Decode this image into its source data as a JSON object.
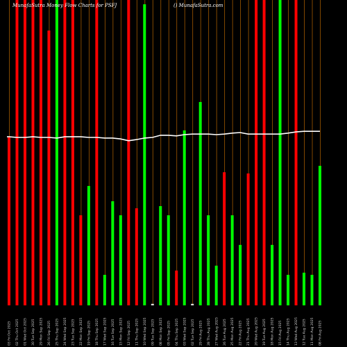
{
  "header": {
    "title": "MunafaSutra Money Flow Charts for PSFJ",
    "site": "() MunafaSutra.com"
  },
  "colors": {
    "background": "#000000",
    "up": "#00ff00",
    "down": "#ff0000",
    "neutral": "#dddddd",
    "grid": "#a35a00",
    "line": "#ffffff"
  },
  "chart_data": {
    "type": "bar",
    "grid": true,
    "legend": "none",
    "ylim": [
      0,
      100
    ],
    "categories": [
      "03 Fri Oct 2025",
      "02 Thu Oct 2025",
      "01 Wed Oct 2025",
      "30 Tue Sep 2025",
      "29 Mon Sep 2025",
      "26 Fri Sep 2025",
      "25 Thu Sep 2025",
      "24 Wed Sep 2025",
      "23 Tue Sep 2025",
      "22 Mon Sep 2025",
      "19 Fri Sep 2025",
      "18 Thu Sep 2025",
      "17 Wed Sep 2025",
      "16 Tue Sep 2025",
      "15 Mon Sep 2025",
      "12 Fri Sep 2025",
      "11 Thu Sep 2025",
      "10 Wed Sep 2025",
      "09 Tue Sep 2025",
      "08 Mon Sep 2025",
      "05 Fri Sep 2025",
      "04 Thu Sep 2025",
      "03 Wed Sep 2025",
      "02 Tue Sep 2025",
      "29 Fri Aug 2025",
      "28 Thu Aug 2025",
      "27 Wed Aug 2025",
      "26 Tue Aug 2025",
      "25 Mon Aug 2025",
      "22 Fri Aug 2025",
      "21 Thu Aug 2025",
      "20 Wed Aug 2025",
      "19 Tue Aug 2025",
      "18 Mon Aug 2025",
      "15 Fri Aug 2025",
      "14 Thu Aug 2025",
      "13 Wed Aug 2025",
      "12 Tue Aug 2025",
      "11 Mon Aug 2025",
      "08 Fri Aug 2025"
    ],
    "series": [
      {
        "type": "bar",
        "values": [
          55.2,
          100,
          100,
          100,
          100,
          90,
          100,
          100,
          100,
          29.5,
          39.1,
          100,
          10,
          34.1,
          29.5,
          100,
          31.8,
          98.6,
          0.5,
          32.5,
          29.5,
          11.4,
          57.3,
          0.5,
          66.6,
          29.5,
          13,
          43.6,
          29.5,
          19.8,
          43.2,
          100,
          100,
          19.8,
          100,
          10,
          100,
          10.7,
          10,
          45.7
        ],
        "direction": [
          "down",
          "down",
          "down",
          "down",
          "down",
          "down",
          "up",
          "down",
          "down",
          "down",
          "up",
          "down",
          "up",
          "up",
          "up",
          "down",
          "down",
          "up",
          "neutral",
          "up",
          "up",
          "down",
          "up",
          "neutral",
          "up",
          "up",
          "up",
          "down",
          "up",
          "up",
          "down",
          "down",
          "down",
          "up",
          "up",
          "up",
          "down",
          "up",
          "up",
          "up"
        ]
      },
      {
        "type": "line",
        "values": [
          55.2,
          55,
          55,
          55.2,
          55,
          55,
          54.8,
          55.2,
          55.2,
          55.2,
          55,
          55,
          54.8,
          54.8,
          54.5,
          53.9,
          54.3,
          54.8,
          55,
          55.7,
          55.7,
          55.5,
          55.9,
          56.1,
          56.1,
          56.1,
          55.9,
          56.1,
          56.4,
          56.6,
          56.1,
          56.1,
          56.1,
          56.1,
          56.1,
          56.4,
          56.8,
          57,
          57,
          57
        ]
      }
    ]
  }
}
